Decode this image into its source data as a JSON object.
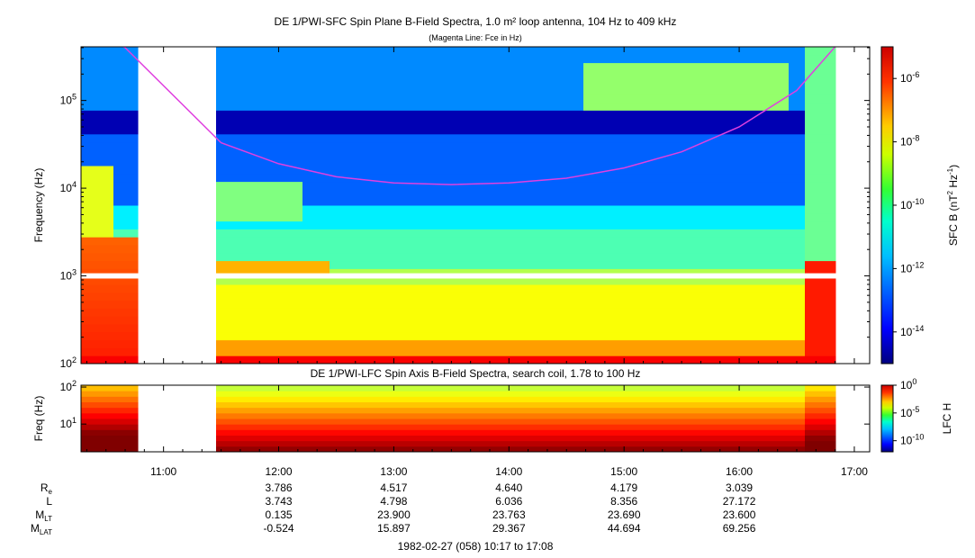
{
  "panel1": {
    "title": "DE 1/PWI-SFC  Spin Plane B-Field Spectra, 1.0 m² loop antenna, 104 Hz to 409 kHz",
    "subtitle": "(Magenta Line: Fce in Hz)",
    "ylabel": "Frequency (Hz)",
    "colorbar_label_parts": [
      "SFC B (nT",
      "2",
      " Hz",
      "-1",
      ")"
    ],
    "colorbar_ticks": [
      {
        "mant": "10",
        "exp": "-6",
        "v": -6
      },
      {
        "mant": "10",
        "exp": "-8",
        "v": -8
      },
      {
        "mant": "10",
        "exp": "-10",
        "v": -10
      },
      {
        "mant": "10",
        "exp": "-12",
        "v": -12
      },
      {
        "mant": "10",
        "exp": "-14",
        "v": -14
      }
    ],
    "colorbar_range": [
      -15,
      -5
    ],
    "y_ticks": [
      {
        "mant": "10",
        "exp": "5",
        "v": 5
      },
      {
        "mant": "10",
        "exp": "4",
        "v": 4
      },
      {
        "mant": "10",
        "exp": "3",
        "v": 3
      },
      {
        "mant": "10",
        "exp": "2",
        "v": 2
      }
    ],
    "y_range_log10": [
      2,
      5.612
    ]
  },
  "panel2": {
    "title": "DE 1/PWI-LFC  Spin Axis B-Field Spectra, search coil, 1.78 to 100 Hz",
    "ylabel": "Freq (Hz)",
    "colorbar_label": "LFC H",
    "colorbar_ticks": [
      {
        "mant": "10",
        "exp": "0",
        "v": 0
      },
      {
        "mant": "10",
        "exp": "-5",
        "v": -5
      },
      {
        "mant": "10",
        "exp": "-10",
        "v": -10
      }
    ],
    "colorbar_range": [
      -12,
      0
    ],
    "y_ticks": [
      {
        "mant": "10",
        "exp": "2",
        "v": 2
      },
      {
        "mant": "10",
        "exp": "1",
        "v": 1
      }
    ],
    "y_range_log10": [
      0.25,
      2.05
    ]
  },
  "x_axis": {
    "range_hours": [
      10.2833,
      17.1333
    ],
    "ticks": [
      {
        "label": "11:00",
        "h": 11
      },
      {
        "label": "12:00",
        "h": 12
      },
      {
        "label": "13:00",
        "h": 13
      },
      {
        "label": "14:00",
        "h": 14
      },
      {
        "label": "15:00",
        "h": 15
      },
      {
        "label": "16:00",
        "h": 16
      },
      {
        "label": "17:00",
        "h": 17
      }
    ],
    "footer": "1982-02-27 (058) 10:17 to 17:08"
  },
  "ephemeris": [
    {
      "label": "R",
      "sub": "e",
      "values": [
        "3.786",
        "4.517",
        "4.640",
        "4.179",
        "3.039"
      ]
    },
    {
      "label": "L",
      "sub": "",
      "values": [
        "3.743",
        "4.798",
        "6.036",
        "8.356",
        "27.172"
      ]
    },
    {
      "label": "M",
      "sub": "LT",
      "values": [
        "0.135",
        "23.900",
        "23.763",
        "23.690",
        "23.600"
      ]
    },
    {
      "label": "M",
      "sub": "LAT",
      "values": [
        "-0.524",
        "15.897",
        "29.367",
        "44.694",
        "69.256"
      ]
    }
  ],
  "ephemeris_hours": [
    12,
    13,
    14,
    15,
    16
  ],
  "chart_data": [
    {
      "type": "heatmap",
      "title": "DE 1/PWI-SFC  Spin Plane B-Field Spectra, 1.0 m² loop antenna, 104 Hz to 409 kHz",
      "xlabel": "",
      "ylabel": "Frequency (Hz)",
      "x_range": [
        "10:17",
        "17:08"
      ],
      "y_range": [
        100,
        409000
      ],
      "y_scale": "log",
      "color_scale": "log",
      "color_label": "SFC B (nT^2 Hz^-1)",
      "color_range": [
        1e-15,
        1e-05
      ],
      "data_gap": [
        "10:47",
        "11:27"
      ],
      "series": [
        {
          "name": "Fce in Hz",
          "color": "#e040e0",
          "x": [
            "10:17",
            "10:40",
            "11:30",
            "12:00",
            "12:30",
            "13:00",
            "13:30",
            "14:00",
            "14:30",
            "15:00",
            "15:30",
            "16:00",
            "16:30",
            "16:50"
          ],
          "y": [
            700000,
            400000,
            33000,
            19000,
            13500,
            11500,
            11000,
            11500,
            13000,
            17000,
            26000,
            50000,
            130000,
            409000
          ]
        }
      ]
    },
    {
      "type": "heatmap",
      "title": "DE 1/PWI-LFC  Spin Axis B-Field Spectra, search coil, 1.78 to 100 Hz",
      "xlabel": "",
      "ylabel": "Freq (Hz)",
      "x_range": [
        "10:17",
        "17:08"
      ],
      "y_range": [
        1.78,
        100
      ],
      "y_scale": "log",
      "color_scale": "log",
      "color_label": "LFC H",
      "color_range": [
        1e-12,
        1
      ],
      "data_gap": [
        "10:47",
        "11:27"
      ]
    }
  ]
}
